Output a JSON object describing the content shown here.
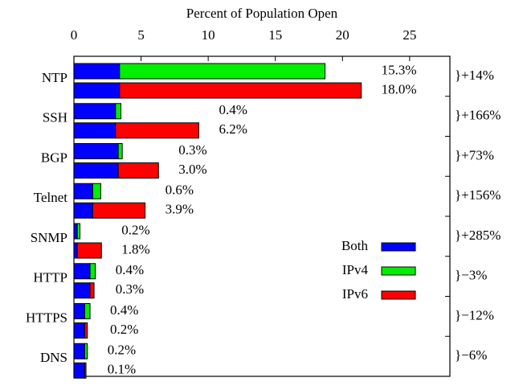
{
  "chart_data": {
    "type": "bar",
    "orientation": "horizontal",
    "title": "Percent of Population Open",
    "categories": [
      "NTP",
      "SSH",
      "BGP",
      "Telnet",
      "SNMP",
      "HTTP",
      "HTTPS",
      "DNS"
    ],
    "series": [
      {
        "name": "Both",
        "color": "#0000ff",
        "values": [
          3.4,
          3.1,
          3.3,
          1.4,
          0.25,
          1.2,
          0.8,
          0.8
        ]
      },
      {
        "name": "IPv4",
        "color": "#00ee00",
        "values": [
          15.3,
          0.4,
          0.3,
          0.6,
          0.2,
          0.4,
          0.4,
          0.2
        ],
        "value_labels": [
          "15.3%",
          "0.4%",
          "0.3%",
          "0.6%",
          "0.2%",
          "0.4%",
          "0.4%",
          "0.2%"
        ]
      },
      {
        "name": "IPv6",
        "color": "#ff0000",
        "values": [
          18.0,
          6.2,
          3.0,
          3.9,
          1.8,
          0.3,
          0.2,
          0.1
        ],
        "value_labels": [
          "18.0%",
          "6.2%",
          "3.0%",
          "3.9%",
          "1.8%",
          "0.3%",
          "0.2%",
          "0.1%"
        ]
      }
    ],
    "change_labels": [
      "}+14%",
      "}+166%",
      "}+73%",
      "}+156%",
      "}+285%",
      "}−3%",
      "}−12%",
      "}−6%"
    ],
    "xlim": [
      0,
      28
    ],
    "xticks": [
      0,
      5,
      10,
      15,
      20,
      25
    ],
    "legend_position": "center right"
  }
}
